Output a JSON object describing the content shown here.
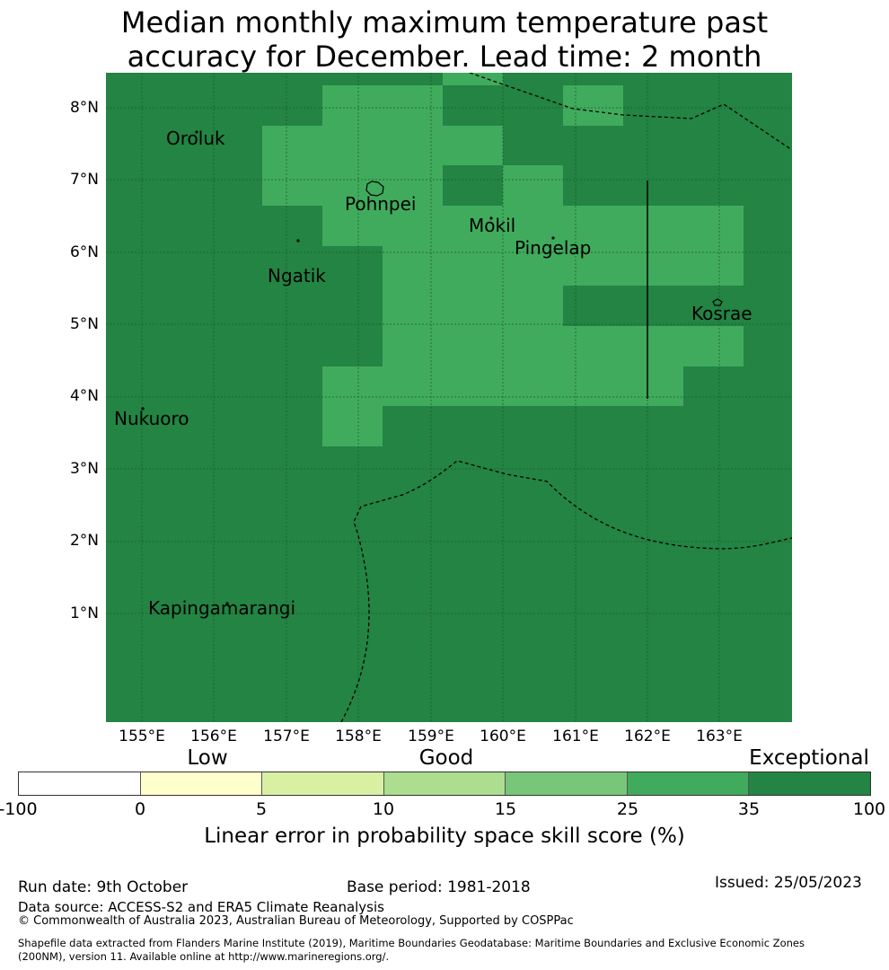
{
  "title_line1": "Median monthly maximum temperature past",
  "title_line2": "accuracy for December. Lead time: 2 month",
  "map": {
    "background_color": "#238443",
    "highlight_color": "#41ab5d",
    "lat_labels": [
      "8°N",
      "7°N",
      "6°N",
      "5°N",
      "4°N",
      "3°N",
      "2°N",
      "1°N"
    ],
    "lon_labels": [
      "155°E",
      "156°E",
      "157°E",
      "158°E",
      "159°E",
      "160°E",
      "161°E",
      "162°E",
      "163°E"
    ],
    "places": [
      "Oroluk",
      "Pohnpei",
      "Mokil",
      "Pingelap",
      "Ngatik",
      "Kosrae",
      "Nukuoro",
      "Kapingamarangi"
    ]
  },
  "colorbar": {
    "categories": [
      "Low",
      "Good",
      "Exceptional"
    ],
    "ticks": [
      "-100",
      "0",
      "5",
      "10",
      "15",
      "25",
      "35",
      "100"
    ],
    "colors": [
      "#ffffff",
      "#ffffcc",
      "#d9f0a3",
      "#addd8e",
      "#78c679",
      "#41ab5d",
      "#238443"
    ],
    "label": "Linear error in probability space skill score (%)"
  },
  "footer": {
    "run_date": "Run date: 9th October",
    "base_period": "Base period: 1981-2018",
    "issued": "Issued: 25/05/2023",
    "data_source": "Data source: ACCESS-S2 and ERA5 Climate Reanalysis",
    "copyright": "© Commonwealth of Australia 2023, Australian Bureau of Meteorology, Supported by COSPPac",
    "shapefile_line1": "Shapefile data extracted from Flanders Marine Institute (2019), Maritime Boundaries Geodatabase: Maritime Boundaries and Exclusive Economic Zones",
    "shapefile_line2": "(200NM), version 11. Available online at http://www.marineregions.org/."
  }
}
